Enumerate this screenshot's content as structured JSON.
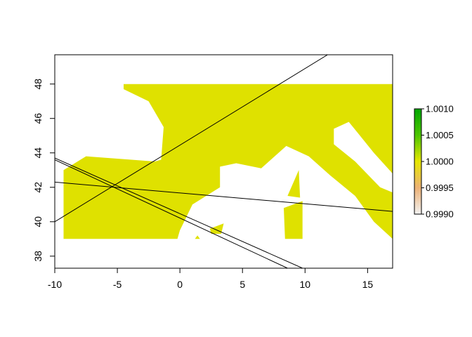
{
  "chart_data": {
    "type": "heatmap",
    "title": "",
    "xlabel": "",
    "ylabel": "",
    "xlim": [
      -10,
      17
    ],
    "ylim": [
      37.3,
      49.7
    ],
    "x_ticks": [
      "-10",
      "-5",
      "0",
      "5",
      "10",
      "15"
    ],
    "y_ticks": [
      "38",
      "40",
      "42",
      "44",
      "46",
      "48"
    ],
    "raster_value": 1.0,
    "raster_color": "#dfe100",
    "legend": {
      "placement": "right",
      "min": 0.999,
      "max": 1.001,
      "labels": [
        "1.0010",
        "1.0005",
        "1.0000",
        "0.9995",
        "0.9990"
      ],
      "colors": [
        "#00a600",
        "#4cc500",
        "#e6e600",
        "#ecb176",
        "#f2f2f2"
      ]
    },
    "land_outline": [
      [
        -9.3,
        39.0
      ],
      [
        -9.3,
        43.0
      ],
      [
        -7.5,
        43.8
      ],
      [
        -2.0,
        43.5
      ],
      [
        -1.5,
        43.6
      ],
      [
        -1.3,
        45.5
      ],
      [
        -2.5,
        47.0
      ],
      [
        -4.5,
        47.7
      ],
      [
        -4.5,
        48.0
      ],
      [
        17,
        48.0
      ],
      [
        17,
        39.0
      ],
      [
        15.5,
        40.0
      ],
      [
        14.0,
        41.5
      ],
      [
        12.0,
        42.7
      ],
      [
        10.3,
        43.8
      ],
      [
        8.5,
        44.4
      ],
      [
        6.5,
        43.1
      ],
      [
        4.5,
        43.4
      ],
      [
        3.2,
        43.2
      ],
      [
        3.2,
        42.0
      ],
      [
        1.0,
        41.0
      ],
      [
        0.0,
        39.5
      ],
      [
        -0.2,
        39.0
      ]
    ],
    "sea_holes": [
      [
        [
          12.3,
          45.4
        ],
        [
          13.5,
          45.8
        ],
        [
          15.5,
          44.0
        ],
        [
          17,
          42.8
        ],
        [
          17,
          41.7
        ],
        [
          16.0,
          42.0
        ],
        [
          14.0,
          43.5
        ],
        [
          12.3,
          44.5
        ]
      ]
    ],
    "islands": [
      [
        [
          8.3,
          40.8
        ],
        [
          9.8,
          41.2
        ],
        [
          9.8,
          39.0
        ],
        [
          8.4,
          39.0
        ]
      ],
      [
        [
          8.6,
          41.5
        ],
        [
          9.5,
          43.0
        ],
        [
          9.6,
          41.4
        ]
      ],
      [
        [
          2.4,
          39.6
        ],
        [
          3.5,
          39.9
        ],
        [
          3.3,
          39.3
        ],
        [
          2.5,
          39.3
        ]
      ],
      [
        [
          1.2,
          39.0
        ],
        [
          1.6,
          39.0
        ],
        [
          1.4,
          39.2
        ]
      ]
    ],
    "lines": [
      {
        "x": [
          -10.0,
          11.8
        ],
        "y": [
          40.0,
          49.7
        ]
      },
      {
        "x": [
          -10.0,
          17.0
        ],
        "y": [
          42.3,
          40.6
        ]
      },
      {
        "x": [
          -10.0,
          9.8
        ],
        "y": [
          43.7,
          37.3
        ]
      },
      {
        "x": [
          -10.0,
          8.6
        ],
        "y": [
          43.6,
          37.3
        ]
      }
    ]
  }
}
